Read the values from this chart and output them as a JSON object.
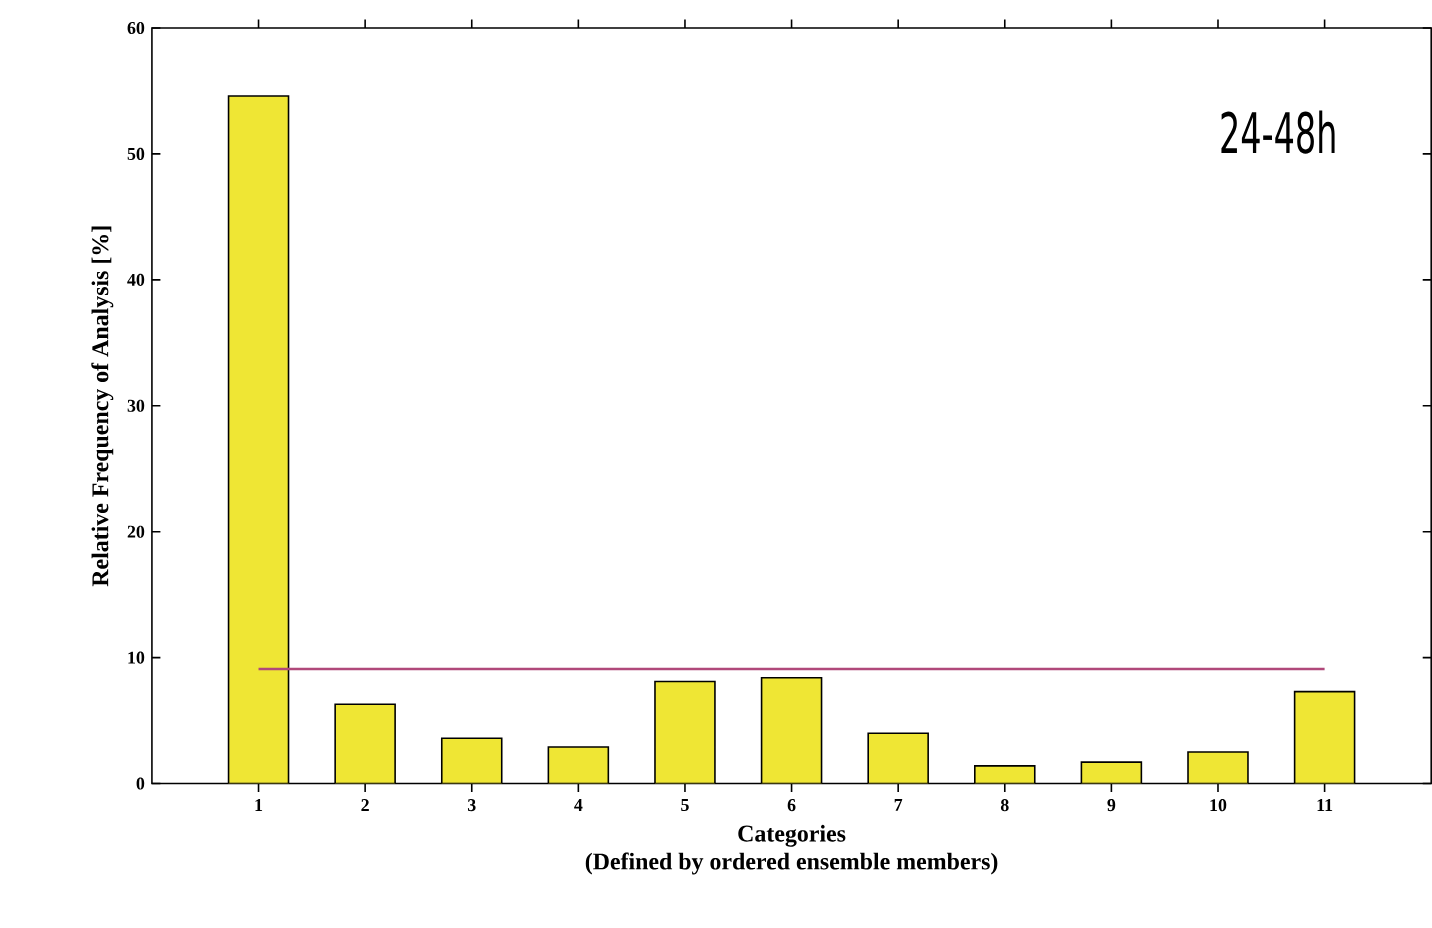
{
  "chart_data": {
    "type": "bar",
    "categories": [
      "1",
      "2",
      "3",
      "4",
      "5",
      "6",
      "7",
      "8",
      "9",
      "10",
      "11"
    ],
    "values": [
      54.6,
      6.3,
      3.6,
      2.9,
      8.1,
      8.4,
      4.0,
      1.4,
      1.7,
      2.5,
      7.3
    ],
    "color": "#efe634",
    "xlabel": "Categories\n(Defined by ordered ensemble members)",
    "ylabel": "Relative Frequency of Analysis [%]",
    "ylim": [
      0,
      60
    ],
    "yticks": [
      0,
      10,
      20,
      30,
      40,
      50,
      60
    ],
    "ref_lines": [
      {
        "axis": "y",
        "value": 9.1,
        "color": "#b0487a"
      }
    ],
    "annotations": [
      "24-48h"
    ],
    "grid": false
  }
}
